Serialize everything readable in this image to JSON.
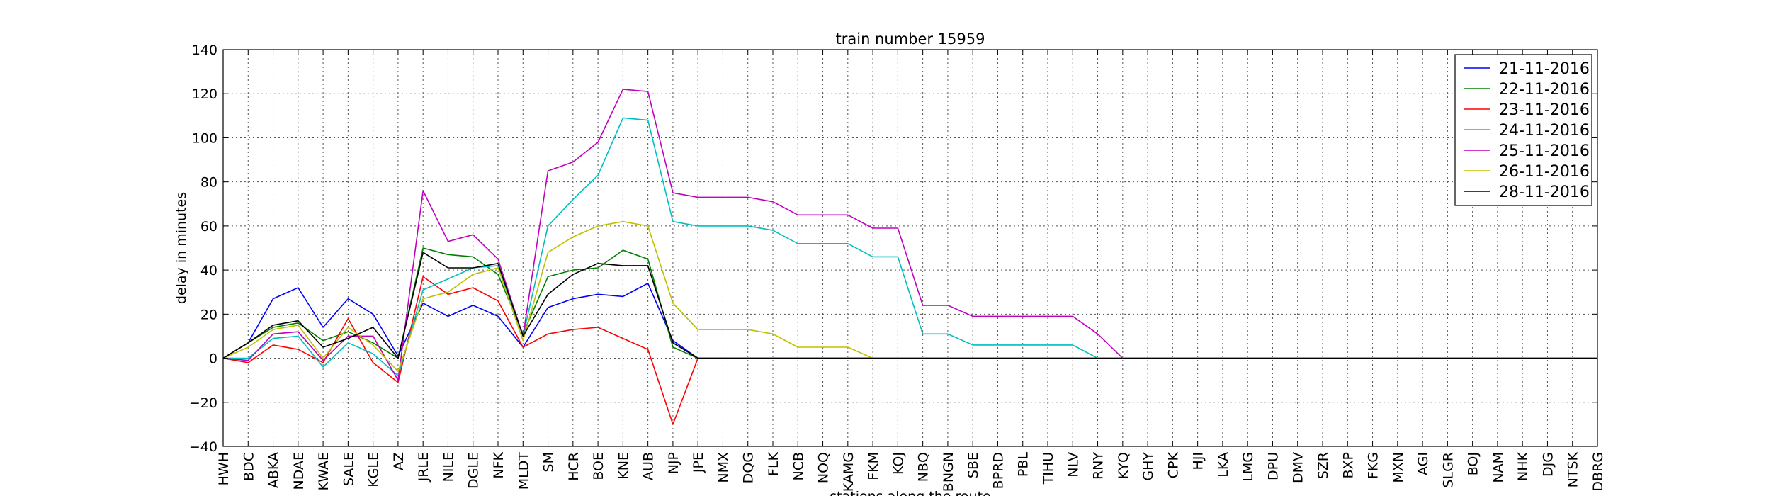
{
  "chart_data": {
    "type": "line",
    "title": "train number 15959",
    "xlabel": "stations along the route",
    "ylabel": "delay in minutes",
    "ylim": [
      -40,
      140
    ],
    "yticks": [
      -40,
      -20,
      0,
      20,
      40,
      60,
      80,
      100,
      120,
      140
    ],
    "grid": true,
    "legend_position": "top-right",
    "categories": [
      "HWH",
      "BDC",
      "ABKA",
      "NDAE",
      "KWAE",
      "SALE",
      "KGLE",
      "AZ",
      "JRLE",
      "NILE",
      "DGLE",
      "NFK",
      "MLDT",
      "SM",
      "HCR",
      "BOE",
      "KNE",
      "AUB",
      "NJP",
      "JPE",
      "NMX",
      "DQG",
      "FLK",
      "NCB",
      "NOQ",
      "KAMG",
      "FKM",
      "KOJ",
      "NBQ",
      "BNGN",
      "SBE",
      "BPRD",
      "PBL",
      "TIHU",
      "NLV",
      "RNY",
      "KYQ",
      "GHY",
      "CPK",
      "HJI",
      "LKA",
      "LMG",
      "DPU",
      "DMV",
      "SZR",
      "BXP",
      "FKG",
      "MXN",
      "AGI",
      "SLGR",
      "BOJ",
      "NAM",
      "NHK",
      "DJG",
      "NTSK",
      "DBRG"
    ],
    "series": [
      {
        "name": "21-11-2016",
        "color": "#0000ff",
        "values": [
          0,
          7,
          27,
          32,
          14,
          27,
          20,
          1,
          25,
          19,
          24,
          19,
          5,
          23,
          27,
          29,
          28,
          34,
          8,
          0,
          0,
          0,
          0,
          0,
          0,
          0,
          0,
          0,
          0,
          0,
          0,
          0,
          0,
          0,
          0,
          0,
          0,
          0,
          0,
          0,
          0,
          0,
          0,
          0,
          0,
          0,
          0,
          0,
          0,
          0,
          0,
          0,
          0,
          0,
          0,
          0
        ]
      },
      {
        "name": "22-11-2016",
        "color": "#008000",
        "values": [
          0,
          7,
          14,
          16,
          8,
          12,
          7,
          0,
          50,
          47,
          46,
          38,
          11,
          37,
          40,
          41,
          49,
          45,
          5,
          0,
          0,
          0,
          0,
          0,
          0,
          0,
          0,
          0,
          0,
          0,
          0,
          0,
          0,
          0,
          0,
          0,
          0,
          0,
          0,
          0,
          0,
          0,
          0,
          0,
          0,
          0,
          0,
          0,
          0,
          0,
          0,
          0,
          0,
          0,
          0,
          0
        ]
      },
      {
        "name": "23-11-2016",
        "color": "#ff0000",
        "values": [
          0,
          -2,
          6,
          4,
          -2,
          18,
          -2,
          -11,
          37,
          29,
          32,
          26,
          5,
          11,
          13,
          14,
          9,
          4,
          -30,
          0,
          0,
          0,
          0,
          0,
          0,
          0,
          0,
          0,
          0,
          0,
          0,
          0,
          0,
          0,
          0,
          0,
          0,
          0,
          0,
          0,
          0,
          0,
          0,
          0,
          0,
          0,
          0,
          0,
          0,
          0,
          0,
          0,
          0,
          0,
          0,
          0
        ]
      },
      {
        "name": "24-11-2016",
        "color": "#00bfbf",
        "values": [
          0,
          0,
          9,
          10,
          -4,
          7,
          2,
          -8,
          31,
          36,
          41,
          42,
          10,
          60,
          72,
          83,
          109,
          108,
          62,
          60,
          60,
          60,
          58,
          52,
          52,
          52,
          46,
          46,
          11,
          11,
          6,
          6,
          6,
          6,
          6,
          0,
          0,
          0,
          0,
          0,
          0,
          0,
          0,
          0,
          0,
          0,
          0,
          0,
          0,
          0,
          0,
          0,
          0,
          0,
          0,
          0
        ]
      },
      {
        "name": "25-11-2016",
        "color": "#bf00bf",
        "values": [
          0,
          -1,
          11,
          12,
          -1,
          10,
          10,
          -10,
          76,
          53,
          56,
          45,
          10,
          85,
          89,
          98,
          122,
          121,
          75,
          73,
          73,
          73,
          71,
          65,
          65,
          65,
          59,
          59,
          24,
          24,
          19,
          19,
          19,
          19,
          19,
          11,
          0,
          0,
          0,
          0,
          0,
          0,
          0,
          0,
          0,
          0,
          0,
          0,
          0,
          0,
          0,
          0,
          0,
          0,
          0,
          0
        ]
      },
      {
        "name": "26-11-2016",
        "color": "#bfbf00",
        "values": [
          0,
          5,
          13,
          15,
          0,
          14,
          6,
          -6,
          27,
          30,
          38,
          41,
          8,
          48,
          55,
          60,
          62,
          60,
          25,
          13,
          13,
          13,
          11,
          5,
          5,
          5,
          0,
          0,
          0,
          0,
          0,
          0,
          0,
          0,
          0,
          0,
          0,
          0,
          0,
          0,
          0,
          0,
          0,
          0,
          0,
          0,
          0,
          0,
          0,
          0,
          0,
          0,
          0,
          0,
          0,
          0
        ]
      },
      {
        "name": "28-11-2016",
        "color": "#000000",
        "values": [
          0,
          7,
          15,
          17,
          5,
          9,
          14,
          0,
          48,
          41,
          41,
          43,
          10,
          29,
          38,
          43,
          42,
          42,
          7,
          0,
          0,
          0,
          0,
          0,
          0,
          0,
          0,
          0,
          0,
          0,
          0,
          0,
          0,
          0,
          0,
          0,
          0,
          0,
          0,
          0,
          0,
          0,
          0,
          0,
          0,
          0,
          0,
          0,
          0,
          0,
          0,
          0,
          0,
          0,
          0,
          0
        ]
      }
    ]
  }
}
